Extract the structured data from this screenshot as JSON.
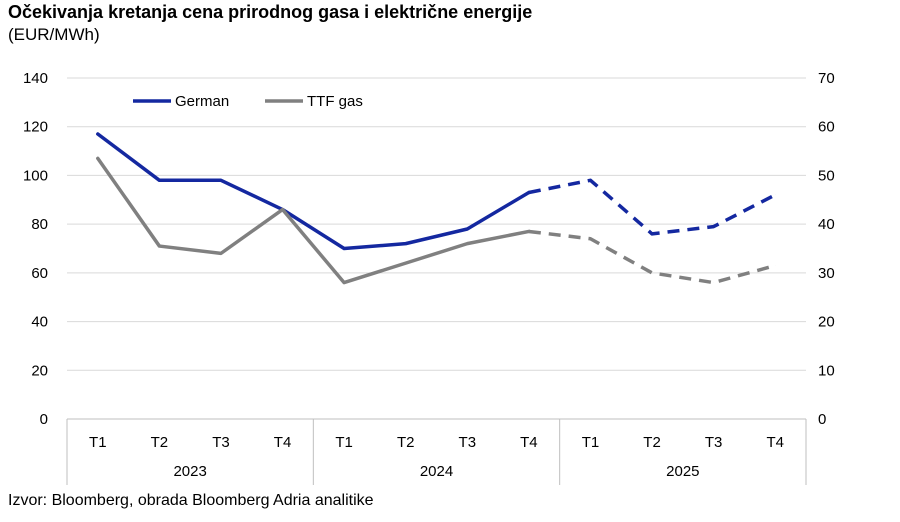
{
  "title": "Očekivanja kretanja cena prirodnog gasa i električne energije",
  "subtitle": "(EUR/MWh)",
  "source": "Izvor: Bloomberg, obrada Bloomberg Adria analitike",
  "chart_data": {
    "type": "line",
    "categories": [
      "T1",
      "T2",
      "T3",
      "T4",
      "T1",
      "T2",
      "T3",
      "T4",
      "T1",
      "T2",
      "T3",
      "T4"
    ],
    "groups": [
      {
        "label": "2023",
        "start": 0,
        "end": 3
      },
      {
        "label": "2024",
        "start": 4,
        "end": 7
      },
      {
        "label": "2025",
        "start": 8,
        "end": 11
      }
    ],
    "y_left": {
      "min": 0,
      "max": 140,
      "ticks": [
        0,
        20,
        40,
        60,
        80,
        100,
        120,
        140
      ]
    },
    "y_right": {
      "min": 0,
      "max": 70,
      "ticks": [
        0,
        10,
        20,
        30,
        40,
        50,
        60,
        70
      ]
    },
    "grid": true,
    "legend_position": "top-left",
    "series": [
      {
        "name": "German",
        "axis": "left",
        "color": "#1428a0",
        "values": [
          117,
          98,
          98,
          86,
          70,
          72,
          78,
          93,
          98,
          76,
          79,
          92
        ],
        "dashed_from_index": 7
      },
      {
        "name": "TTF gas",
        "axis": "right",
        "color": "#808080",
        "values": [
          53.5,
          35.5,
          34,
          43,
          28,
          32,
          36,
          38.5,
          37,
          30,
          28,
          31.5
        ],
        "dashed_from_index": 7
      }
    ]
  }
}
